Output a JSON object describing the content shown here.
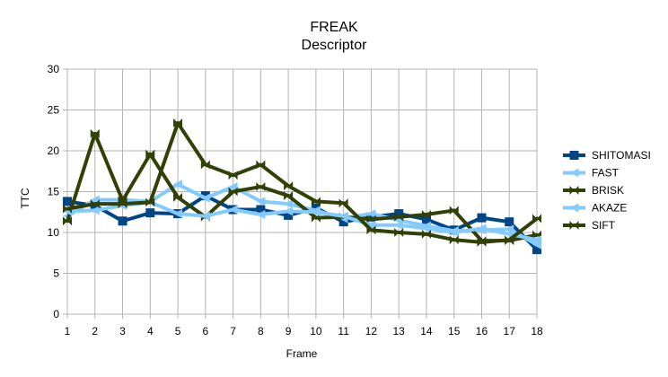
{
  "chart_data": {
    "type": "line",
    "title": "FREAK",
    "subtitle": "Descriptor",
    "xlabel": "Frame",
    "ylabel": "TTC",
    "x": [
      "1",
      "2",
      "3",
      "4",
      "5",
      "6",
      "7",
      "8",
      "9",
      "10",
      "11",
      "12",
      "13",
      "14",
      "15",
      "16",
      "17",
      "18"
    ],
    "ylim": [
      0,
      30
    ],
    "yticks": [
      0,
      5,
      10,
      15,
      20,
      25,
      30
    ],
    "grid": true,
    "legend_position": "right",
    "series": [
      {
        "name": "SHITOMASI",
        "color": "#004586",
        "marker": "square",
        "values": [
          13.8,
          13.3,
          11.4,
          12.4,
          12.3,
          14.5,
          12.8,
          12.8,
          12.1,
          13.0,
          11.3,
          11.9,
          12.3,
          11.6,
          10.3,
          11.8,
          11.3,
          7.9
        ]
      },
      {
        "name": "FAST",
        "color": "#83caff",
        "marker": "triangle-left",
        "values": [
          12.0,
          14.0,
          14.0,
          13.8,
          15.9,
          14.2,
          15.6,
          13.8,
          13.5,
          12.7,
          11.7,
          12.3,
          11.5,
          10.8,
          10.2,
          10.3,
          10.4,
          8.5
        ]
      },
      {
        "name": "BRISK",
        "color": "#314004",
        "marker": "bowtie",
        "values": [
          11.4,
          22.1,
          13.9,
          19.6,
          14.3,
          11.9,
          15.0,
          15.6,
          14.5,
          11.8,
          11.9,
          11.6,
          11.9,
          12.2,
          12.7,
          9.0,
          9.0,
          9.7
        ]
      },
      {
        "name": "AKAZE",
        "color": "#83caff",
        "marker": "triangle-left",
        "values": [
          12.6,
          12.7,
          13.3,
          13.7,
          12.3,
          12.0,
          12.8,
          12.2,
          12.6,
          12.5,
          12.0,
          10.9,
          10.9,
          10.5,
          10.0,
          10.5,
          9.8,
          9.1
        ]
      },
      {
        "name": "SIFT",
        "color": "#314004",
        "marker": "bowtie",
        "values": [
          12.9,
          13.5,
          13.5,
          13.7,
          23.4,
          18.3,
          17.0,
          18.3,
          15.7,
          13.8,
          13.6,
          10.3,
          10.0,
          9.8,
          9.1,
          8.8,
          9.1,
          11.7
        ]
      }
    ]
  }
}
